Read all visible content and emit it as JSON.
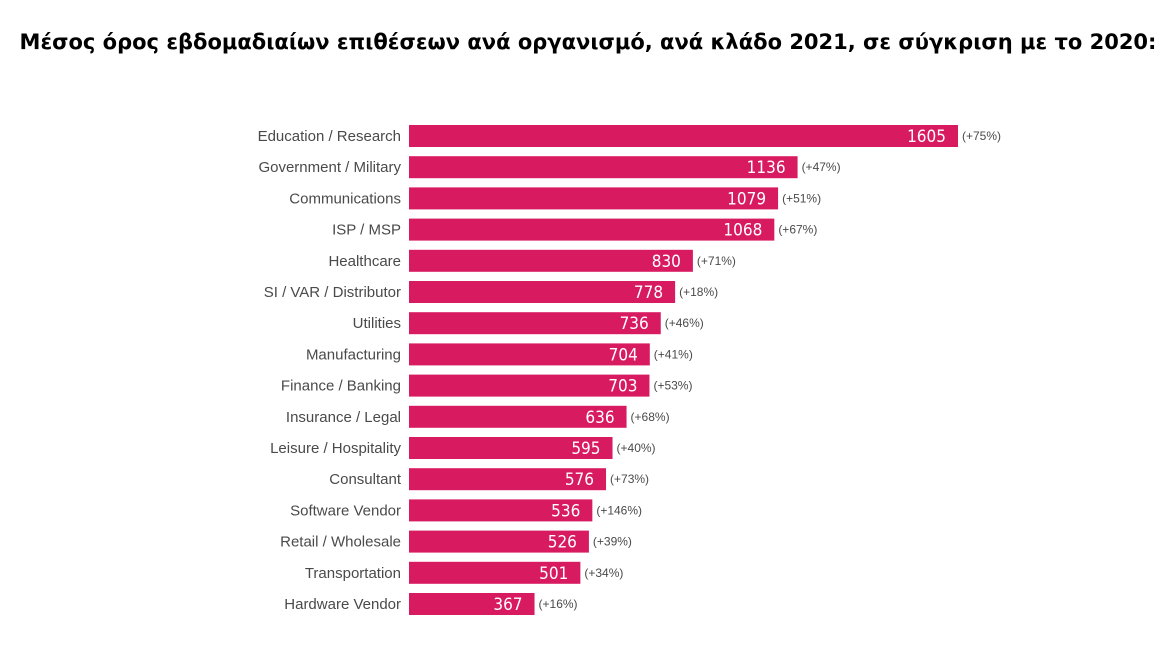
{
  "title": "Μέσος όρος εβδομαδιαίων επιθέσεων ανά οργανισμό, ανά κλάδο 2021, σε σύγκριση με το 2020:",
  "colors": {
    "bar": "#d81b60",
    "category_text": "#4a4a4a",
    "value_text": "#ffffff"
  },
  "chart_data": {
    "type": "bar",
    "orientation": "horizontal",
    "title": "Μέσος όρος εβδομαδιαίων επιθέσεων ανά οργανισμό, ανά κλάδο 2021, σε σύγκριση με το 2020:",
    "xlabel": "",
    "ylabel": "",
    "xlim": [
      0,
      1605
    ],
    "grid": false,
    "legend": "none",
    "categories": [
      "Education / Research",
      "Government / Military",
      "Communications",
      "ISP / MSP",
      "Healthcare",
      "SI / VAR / Distributor",
      "Utilities",
      "Manufacturing",
      "Finance / Banking",
      "Insurance / Legal",
      "Leisure / Hospitality",
      "Consultant",
      "Software Vendor",
      "Retail / Wholesale",
      "Transportation",
      "Hardware Vendor"
    ],
    "values": [
      1605,
      1136,
      1079,
      1068,
      830,
      778,
      736,
      704,
      703,
      636,
      595,
      576,
      536,
      526,
      501,
      367
    ],
    "change_labels": [
      "(+75%)",
      "(+47%)",
      "(+51%)",
      "(+67%)",
      "(+71%)",
      "(+18%)",
      "(+46%)",
      "(+41%)",
      "(+53%)",
      "(+68%)",
      "(+40%)",
      "(+73%)",
      "(+146%)",
      "(+39%)",
      "(+34%)",
      "(+16%)"
    ]
  }
}
